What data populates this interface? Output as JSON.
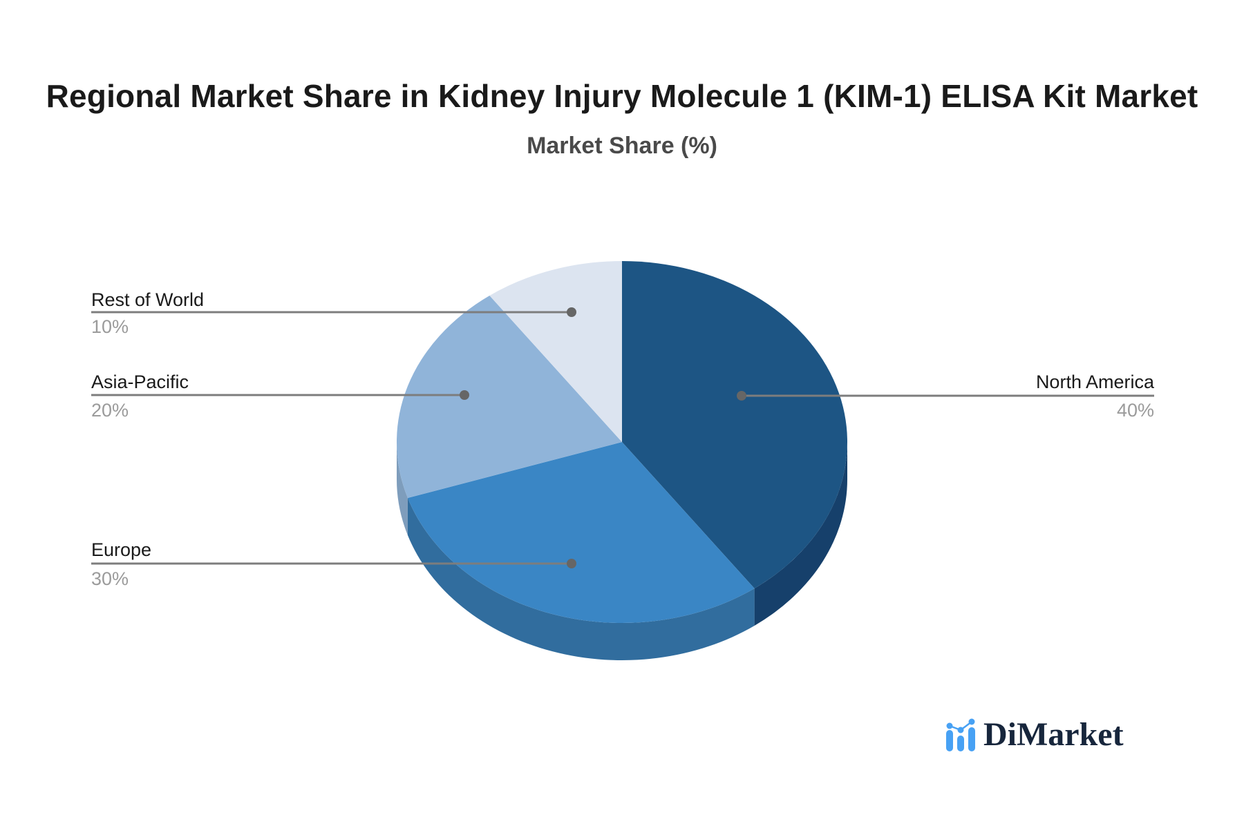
{
  "header": {
    "title": "Regional Market Share in Kidney Injury Molecule 1 (KIM-1) ELISA Kit Market",
    "subtitle": "Market Share (%)"
  },
  "chart_data": {
    "type": "pie",
    "title": "Regional Market Share in Kidney Injury Molecule 1 (KIM-1) ELISA Kit Market",
    "subtitle": "Market Share (%)",
    "unit": "%",
    "effect": "3d",
    "direction": "clockwise",
    "start_angle_deg": 0,
    "legend_position": "none",
    "data_labels": "outside-with-leader-lines",
    "categories": [
      "North America",
      "Europe",
      "Asia-Pacific",
      "Rest of World"
    ],
    "values": [
      40,
      30,
      20,
      10
    ],
    "slices": [
      {
        "label": "North America",
        "value": 40,
        "pct_label": "40%",
        "color": "#1d5584",
        "side_color": "#16406b"
      },
      {
        "label": "Europe",
        "value": 30,
        "pct_label": "30%",
        "color": "#3a86c5",
        "side_color": "#316d9e"
      },
      {
        "label": "Asia-Pacific",
        "value": 20,
        "pct_label": "20%",
        "color": "#90b4d9",
        "side_color": "#7e9dbc"
      },
      {
        "label": "Rest of World",
        "value": 10,
        "pct_label": "10%",
        "color": "#dce4f0",
        "side_color": "#c2cddd"
      }
    ],
    "connector_color": "#7d7d7d",
    "dot_color": "#666666"
  },
  "branding": {
    "logo_text": "DiMarket",
    "logo_icon": "bar-chart-with-trend-dots-icon",
    "icon_color": "#47a1f4",
    "text_color": "#17263c"
  }
}
